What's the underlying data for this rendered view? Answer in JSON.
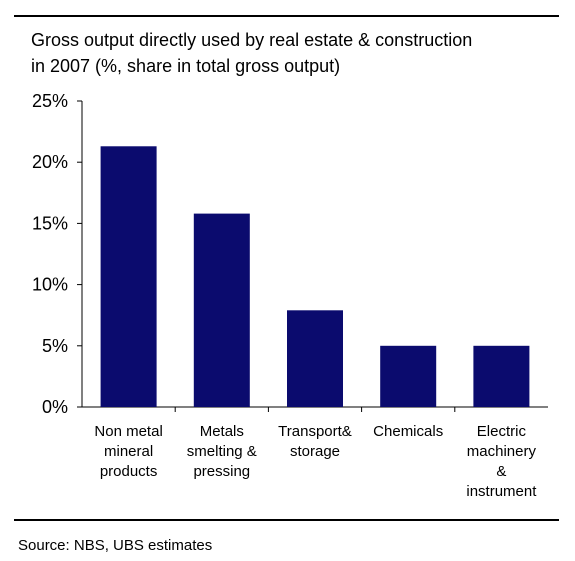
{
  "chart_data": {
    "type": "bar",
    "title": "Gross output directly used by real estate & construction\nin 2007 (%, share in total gross output)",
    "xlabel": "",
    "ylabel": "",
    "categories": [
      [
        "Non metal",
        "mineral",
        "products"
      ],
      [
        "Metals",
        "smelting &",
        "pressing"
      ],
      [
        "Transport&",
        "storage"
      ],
      [
        "Chemicals"
      ],
      [
        "Electric",
        "machinery",
        "&",
        "instrument"
      ]
    ],
    "values": [
      21.3,
      15.8,
      7.9,
      5.0,
      5.0
    ],
    "ylim": [
      0,
      25
    ],
    "yticks": [
      0,
      5,
      10,
      15,
      20,
      25
    ],
    "ytick_labels": [
      "0%",
      "5%",
      "10%",
      "15%",
      "20%",
      "25%"
    ],
    "bar_color": "#0b0b6e",
    "grid": false,
    "legend": "none"
  },
  "footer": {
    "source": "Source: NBS, UBS estimates"
  }
}
